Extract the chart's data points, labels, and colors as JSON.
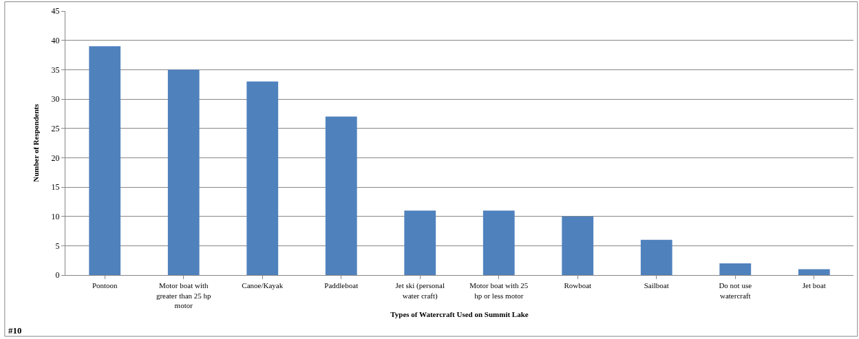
{
  "chart_data": {
    "type": "bar",
    "xlabel": "Types of Watercraft Used on Summit Lake",
    "ylabel": "Number of Respondents",
    "categories": [
      "Pontoon",
      "Motor boat with greater than 25 hp motor",
      "Canoe/Kayak",
      "Paddleboat",
      "Jet ski (personal water craft)",
      "Motor boat with 25 hp or less motor",
      "Rowboat",
      "Sailboat",
      "Do not use watercraft",
      "Jet boat"
    ],
    "values": [
      39,
      35,
      33,
      27,
      11,
      11,
      10,
      6,
      2,
      1
    ],
    "color": "#4f81bd",
    "ylim": [
      0,
      45
    ],
    "yticks": [
      0,
      5,
      10,
      15,
      20,
      25,
      30,
      35,
      40,
      45
    ],
    "grid": "y",
    "legend": false,
    "annotations": [
      "#10"
    ]
  }
}
